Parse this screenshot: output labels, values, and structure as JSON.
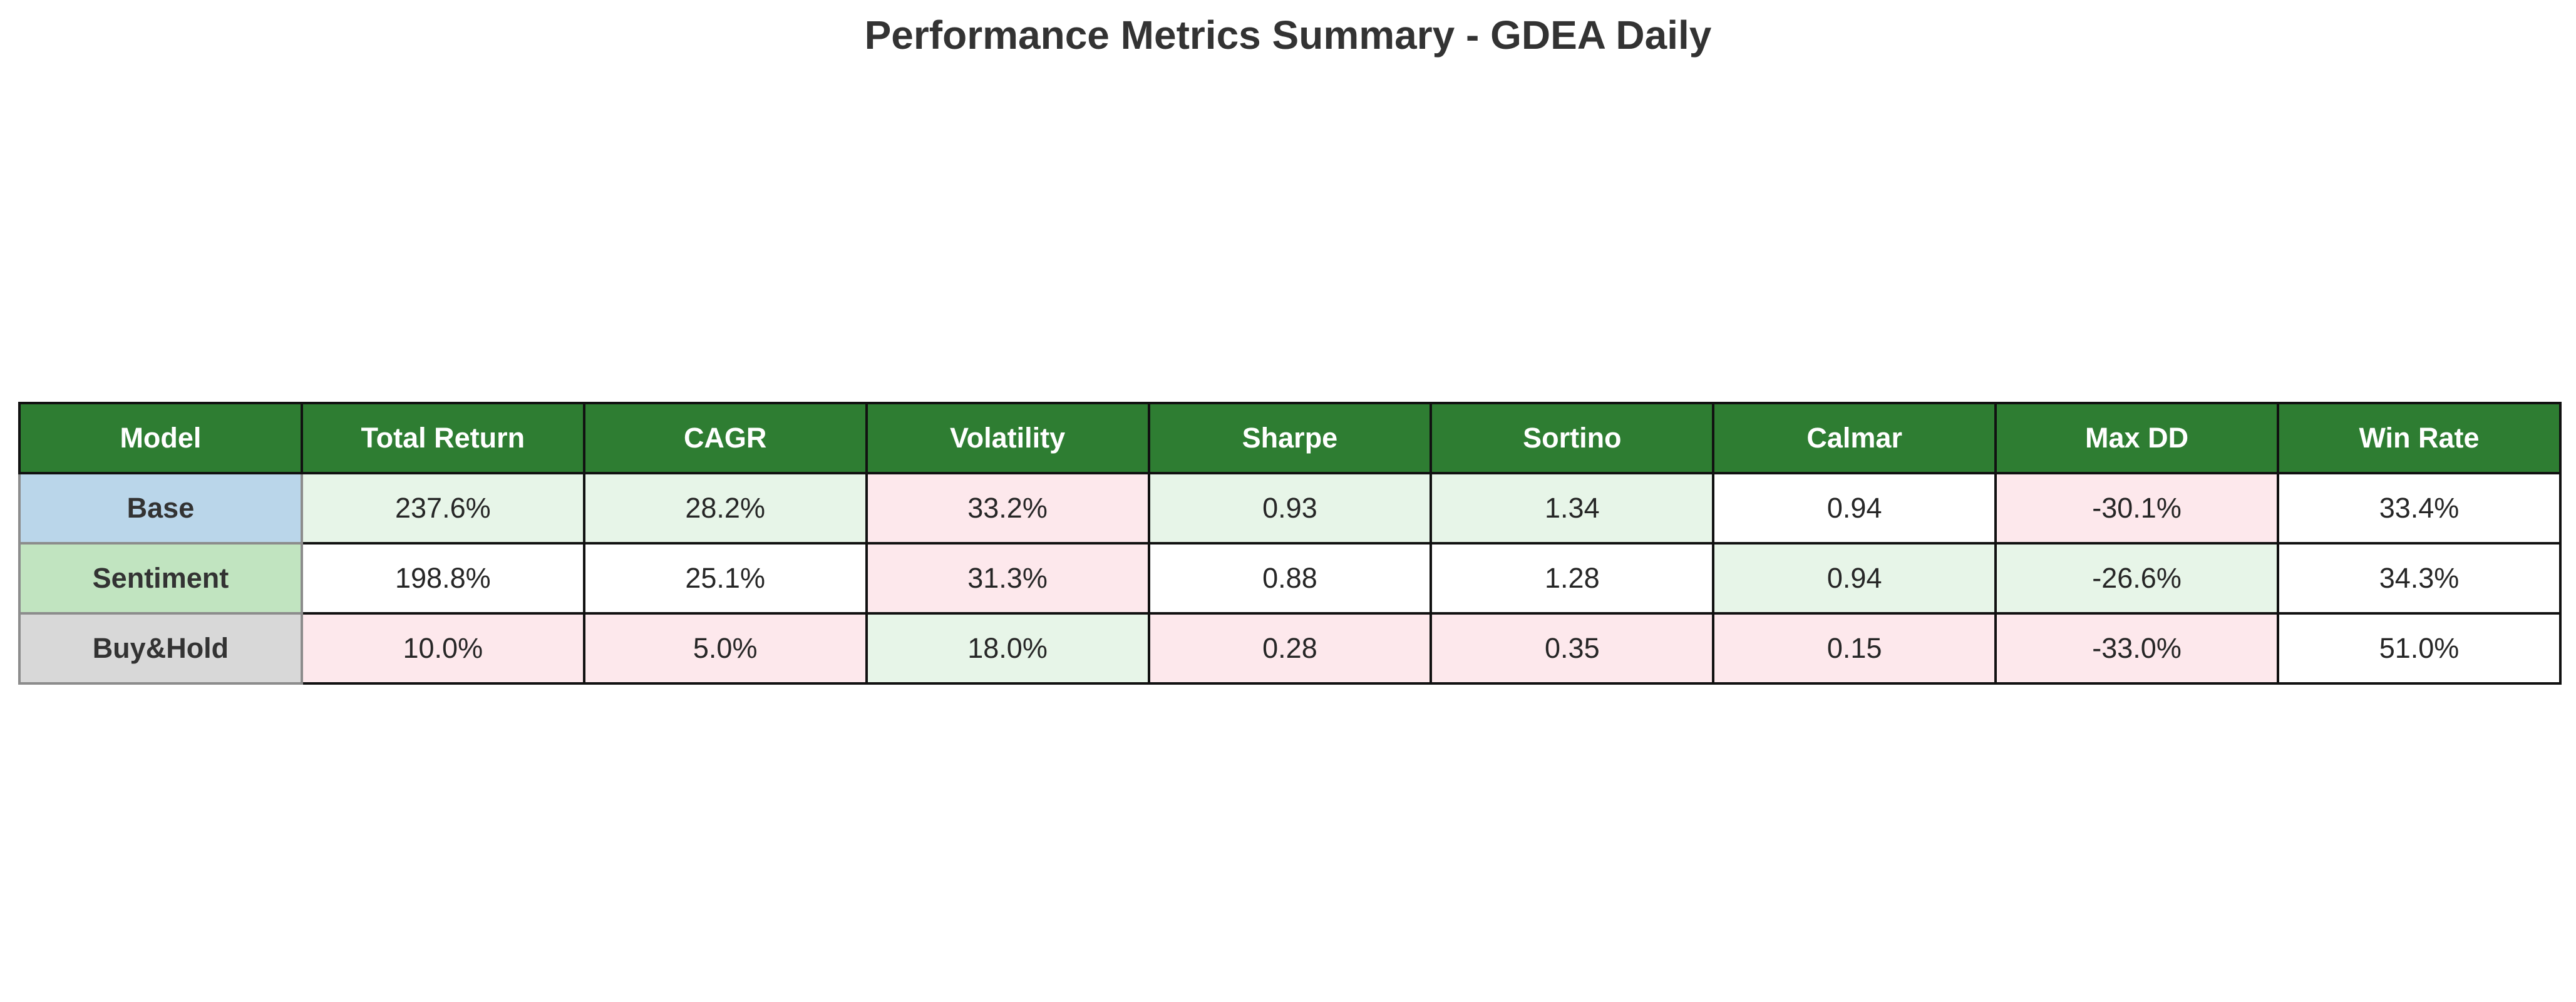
{
  "chart_data": {
    "type": "table",
    "title": "Performance Metrics Summary - GDEA Daily",
    "columns": [
      "Model",
      "Total Return",
      "CAGR",
      "Volatility",
      "Sharpe",
      "Sortino",
      "Calmar",
      "Max DD",
      "Win Rate"
    ],
    "rows": [
      {
        "model": "Base",
        "model_color": "#bad6ea",
        "cells": [
          {
            "text": "237.6%",
            "status": "good"
          },
          {
            "text": "28.2%",
            "status": "good"
          },
          {
            "text": "33.2%",
            "status": "bad"
          },
          {
            "text": "0.93",
            "status": "good"
          },
          {
            "text": "1.34",
            "status": "good"
          },
          {
            "text": "0.94",
            "status": "neutral"
          },
          {
            "text": "-30.1%",
            "status": "bad"
          },
          {
            "text": "33.4%",
            "status": "neutral"
          }
        ]
      },
      {
        "model": "Sentiment",
        "model_color": "#c1e4c0",
        "cells": [
          {
            "text": "198.8%",
            "status": "neutral"
          },
          {
            "text": "25.1%",
            "status": "neutral"
          },
          {
            "text": "31.3%",
            "status": "bad"
          },
          {
            "text": "0.88",
            "status": "neutral"
          },
          {
            "text": "1.28",
            "status": "neutral"
          },
          {
            "text": "0.94",
            "status": "good"
          },
          {
            "text": "-26.6%",
            "status": "good"
          },
          {
            "text": "34.3%",
            "status": "neutral"
          }
        ]
      },
      {
        "model": "Buy&Hold",
        "model_color": "#d8d8d8",
        "cells": [
          {
            "text": "10.0%",
            "status": "bad"
          },
          {
            "text": "5.0%",
            "status": "bad"
          },
          {
            "text": "18.0%",
            "status": "good"
          },
          {
            "text": "0.28",
            "status": "bad"
          },
          {
            "text": "0.35",
            "status": "bad"
          },
          {
            "text": "0.15",
            "status": "bad"
          },
          {
            "text": "-33.0%",
            "status": "bad"
          },
          {
            "text": "51.0%",
            "status": "neutral"
          }
        ]
      }
    ]
  },
  "colors": {
    "header_bg": "#2e7d32",
    "header_text": "#ffffff",
    "good": "#e7f5e8",
    "bad": "#fde8ec",
    "neutral": "#ffffff"
  }
}
